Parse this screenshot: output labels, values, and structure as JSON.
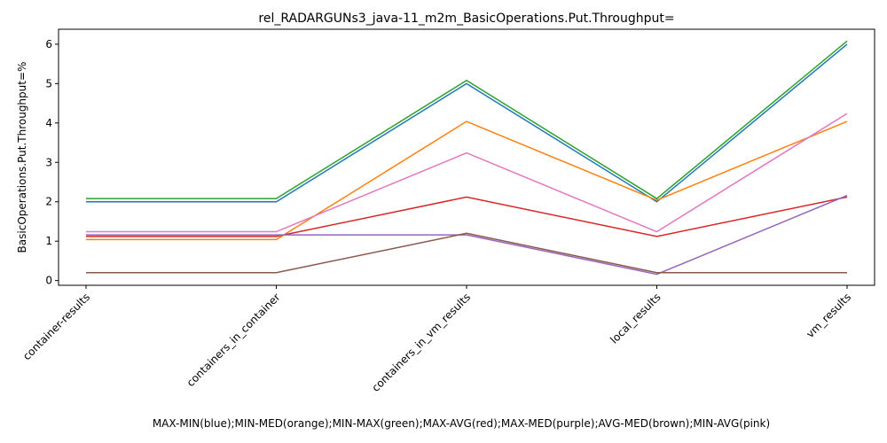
{
  "chart_data": {
    "type": "line",
    "title": "rel_RADARGUNs3_java-11_m2m_BasicOperations.Put.Throughput=",
    "xlabel": "MAX-MIN(blue);MIN-MED(orange);MIN-MAX(green);MAX-AVG(red);MAX-MED(purple);AVG-MED(brown);MIN-AVG(pink)",
    "ylabel": "BasicOperations.Put.Throughput=%",
    "categories": [
      "container-results",
      "containers_in_container",
      "containers_in_vm_results",
      "local_results",
      "vm_results"
    ],
    "yticks": [
      "0",
      "1",
      "2",
      "3",
      "4",
      "5",
      "6"
    ],
    "ylim": [
      -0.12,
      6.38
    ],
    "grid": false,
    "series": [
      {
        "color": "#1f77b4",
        "values": [
          2.0,
          2.0,
          5.0,
          2.0,
          6.0
        ]
      },
      {
        "color": "#ff7f0e",
        "values": [
          1.04,
          1.04,
          4.04,
          2.04,
          4.04
        ]
      },
      {
        "color": "#2ca02c",
        "values": [
          2.08,
          2.08,
          5.08,
          2.08,
          6.08
        ]
      },
      {
        "color": "#d62728",
        "values": [
          1.12,
          1.12,
          2.12,
          1.12,
          2.12
        ]
      },
      {
        "color": "#9467bd",
        "values": [
          1.16,
          1.16,
          1.16,
          0.16,
          2.16
        ]
      },
      {
        "color": "#8c564b",
        "values": [
          0.2,
          0.2,
          1.2,
          0.2,
          0.2
        ]
      },
      {
        "color": "#e377c2",
        "values": [
          1.24,
          1.24,
          3.24,
          1.24,
          4.24
        ]
      }
    ]
  }
}
